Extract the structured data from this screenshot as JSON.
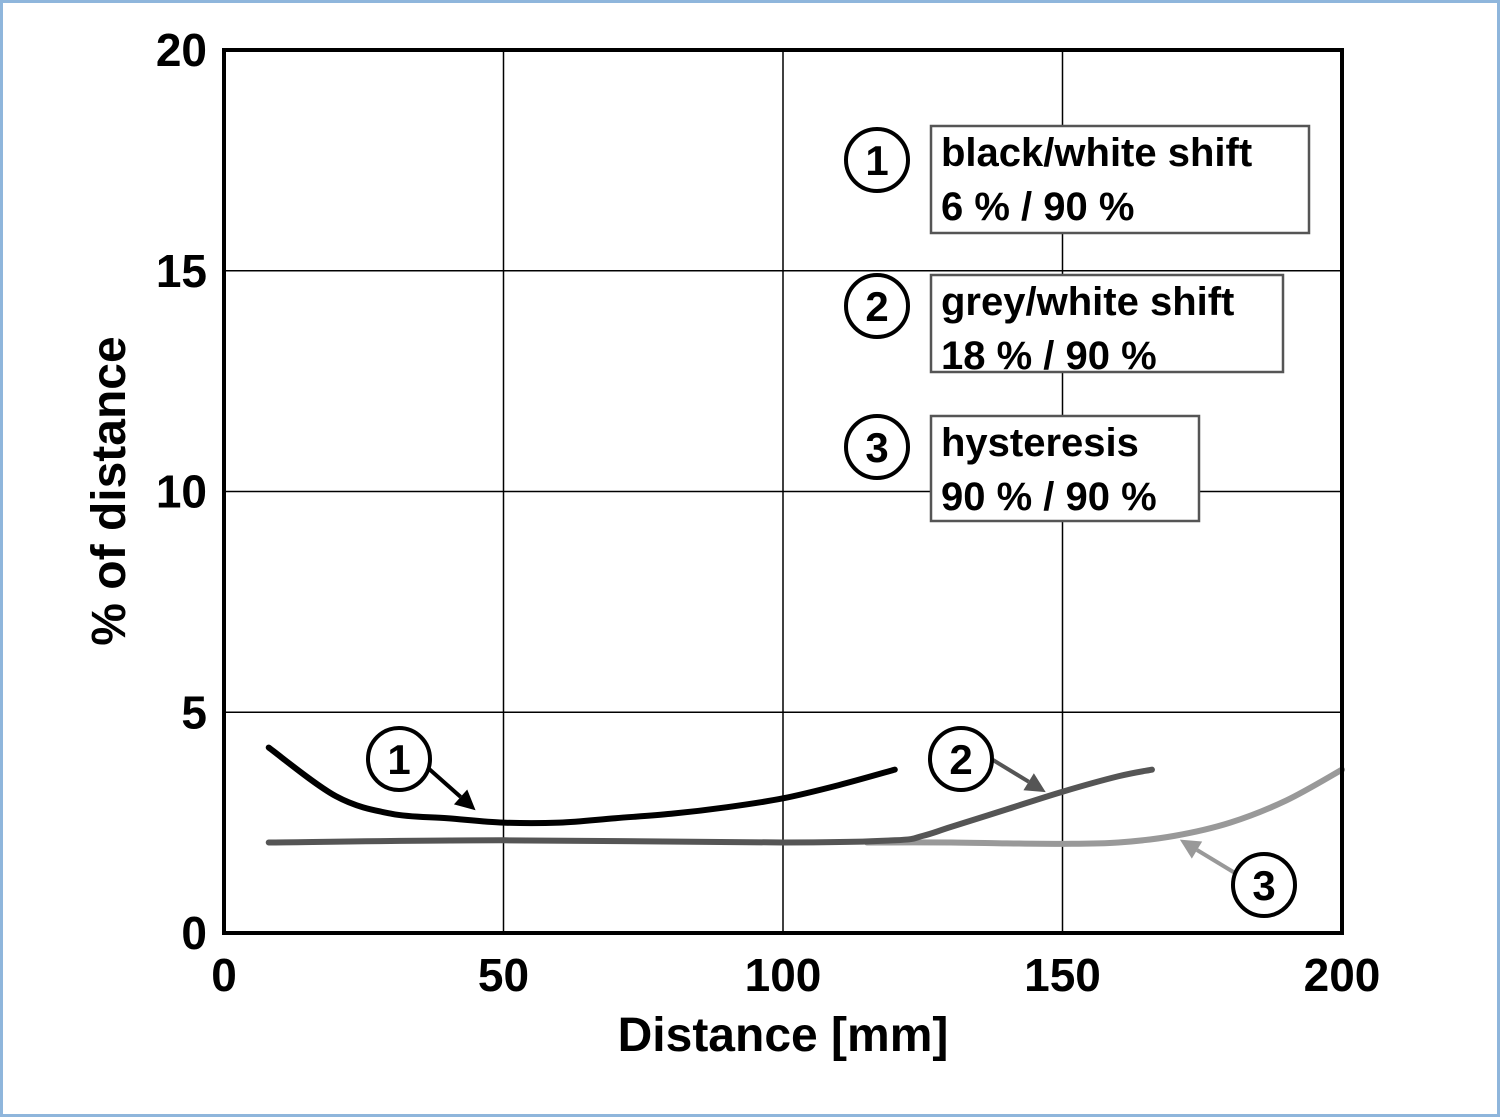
{
  "chart_data": {
    "type": "line",
    "xlabel": "Distance [mm]",
    "ylabel": "% of distance",
    "xlim": [
      0,
      200
    ],
    "ylim": [
      0,
      20
    ],
    "x_ticks": [
      "0",
      "50",
      "100",
      "150",
      "200"
    ],
    "y_ticks": [
      "0",
      "5",
      "10",
      "15",
      "20"
    ],
    "grid": true,
    "legend_position": "top-right",
    "series": [
      {
        "label": "1",
        "color": "#000000",
        "legend_line1": "black/white shift",
        "legend_line2": "6 % / 90 %",
        "x": [
          8,
          20,
          30,
          40,
          50,
          60,
          70,
          80,
          90,
          100,
          110,
          120
        ],
        "y": [
          4.2,
          3.1,
          2.7,
          2.6,
          2.5,
          2.5,
          2.6,
          2.7,
          2.85,
          3.05,
          3.35,
          3.7
        ]
      },
      {
        "label": "2",
        "color": "#555555",
        "legend_line1": "grey/white shift",
        "legend_line2": "18 % / 90 %",
        "x": [
          8,
          50,
          100,
          120,
          125,
          130,
          140,
          150,
          160,
          166
        ],
        "y": [
          2.05,
          2.1,
          2.05,
          2.1,
          2.2,
          2.4,
          2.8,
          3.2,
          3.55,
          3.7
        ]
      },
      {
        "label": "3",
        "color": "#999999",
        "legend_line1": "hysteresis",
        "legend_line2": "90 % / 90 %",
        "x": [
          115,
          130,
          140,
          150,
          160,
          170,
          180,
          190,
          200
        ],
        "y": [
          2.05,
          2.05,
          2.03,
          2.02,
          2.05,
          2.2,
          2.5,
          3.0,
          3.7
        ]
      }
    ]
  }
}
